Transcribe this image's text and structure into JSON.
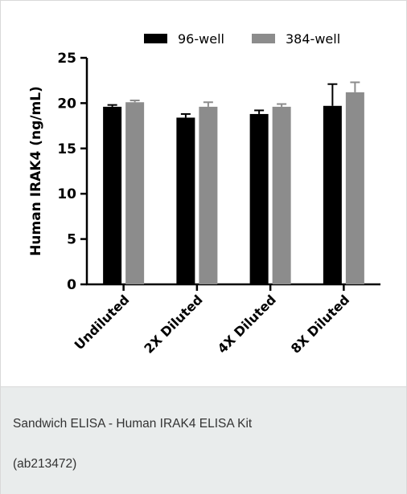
{
  "caption": {
    "line1": "Sandwich ELISA - Human IRAK4 ELISA Kit",
    "line2": "(ab213472)"
  },
  "chart_data": {
    "type": "bar",
    "title": "",
    "xlabel": "",
    "ylabel": "Human IRAK4 (ng/mL)",
    "ylim": [
      0,
      25
    ],
    "yticks": [
      0,
      5,
      10,
      15,
      20,
      25
    ],
    "categories": [
      "Undiluted",
      "2X Diluted",
      "4X Diluted",
      "8X Diluted"
    ],
    "series": [
      {
        "name": "96-well",
        "color": "#000000",
        "values": [
          19.6,
          18.4,
          18.8,
          19.7
        ],
        "errors": [
          0.2,
          0.4,
          0.4,
          2.4
        ]
      },
      {
        "name": "384-well",
        "color": "#8c8c8c",
        "values": [
          20.1,
          19.6,
          19.6,
          21.2
        ],
        "errors": [
          0.2,
          0.5,
          0.3,
          1.1
        ]
      }
    ],
    "legend_position": "top",
    "grid": false,
    "error_bars": "upper"
  }
}
